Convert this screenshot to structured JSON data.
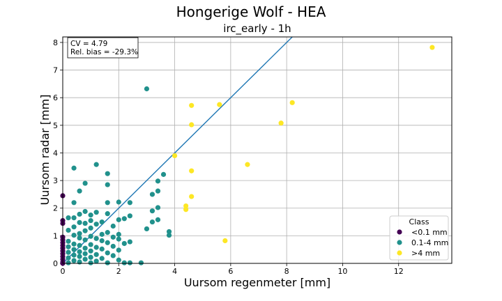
{
  "chart_data": {
    "type": "scatter",
    "suptitle": "Hongerige Wolf - HEA",
    "title": "irc_early - 1h",
    "xlabel": "Uursom regenmeter [mm]",
    "ylabel": "Uursom radar [mm]",
    "xlim": [
      0,
      13.9
    ],
    "ylim": [
      0,
      8.2
    ],
    "xticks": [
      0,
      2,
      4,
      6,
      8,
      10,
      12
    ],
    "yticks": [
      0,
      1,
      2,
      3,
      4,
      5,
      6,
      7,
      8
    ],
    "grid": true,
    "legend": {
      "title": "Class",
      "placement": "lower-right"
    },
    "annotation": {
      "line1": "CV = 4.79",
      "line2": "Rel. bias = -29.3%"
    },
    "reference_line": {
      "x": [
        0,
        8.2
      ],
      "y": [
        0,
        8.2
      ],
      "color": "#1f77b4"
    },
    "series": [
      {
        "name": "<0.1 mm",
        "color": "#440154",
        "points": [
          [
            0,
            2.45
          ],
          [
            0,
            1.55
          ],
          [
            0,
            1.45
          ],
          [
            0,
            0.95
          ],
          [
            0,
            0.85
          ],
          [
            0,
            0.75
          ],
          [
            0,
            0.65
          ],
          [
            0,
            0.55
          ],
          [
            0,
            0.45
          ],
          [
            0,
            0.35
          ],
          [
            0,
            0.25
          ],
          [
            0,
            0.15
          ],
          [
            0,
            0.05
          ],
          [
            0,
            0
          ]
        ]
      },
      {
        "name": "0.1-4 mm",
        "color": "#21918c",
        "points": [
          [
            3.0,
            6.32
          ],
          [
            1.2,
            3.58
          ],
          [
            0.4,
            3.45
          ],
          [
            1.6,
            3.25
          ],
          [
            3.6,
            3.22
          ],
          [
            3.4,
            2.98
          ],
          [
            0.8,
            2.9
          ],
          [
            1.6,
            2.85
          ],
          [
            0.6,
            2.62
          ],
          [
            3.4,
            2.62
          ],
          [
            3.2,
            2.5
          ],
          [
            2.0,
            2.22
          ],
          [
            0.4,
            2.2
          ],
          [
            1.6,
            2.2
          ],
          [
            2.4,
            2.2
          ],
          [
            3.4,
            2.02
          ],
          [
            3.2,
            1.9
          ],
          [
            0.8,
            1.88
          ],
          [
            1.2,
            1.85
          ],
          [
            1.6,
            1.8
          ],
          [
            0.6,
            1.78
          ],
          [
            1.0,
            1.75
          ],
          [
            2.4,
            1.72
          ],
          [
            0.2,
            1.65
          ],
          [
            0.4,
            1.65
          ],
          [
            2.2,
            1.62
          ],
          [
            2.0,
            1.58
          ],
          [
            3.4,
            1.58
          ],
          [
            1.0,
            1.55
          ],
          [
            1.4,
            1.5
          ],
          [
            3.2,
            1.5
          ],
          [
            0.6,
            1.48
          ],
          [
            0.8,
            1.45
          ],
          [
            1.2,
            1.42
          ],
          [
            1.8,
            1.35
          ],
          [
            0.4,
            1.32
          ],
          [
            1.0,
            1.28
          ],
          [
            3.0,
            1.25
          ],
          [
            0.2,
            1.2
          ],
          [
            0.8,
            1.18
          ],
          [
            3.8,
            1.15
          ],
          [
            1.6,
            1.12
          ],
          [
            0.6,
            1.08
          ],
          [
            1.4,
            1.05
          ],
          [
            2.0,
            1.05
          ],
          [
            3.8,
            1.02
          ],
          [
            0.4,
            1.02
          ],
          [
            1.0,
            0.98
          ],
          [
            1.8,
            0.95
          ],
          [
            0.6,
            0.92
          ],
          [
            1.2,
            0.9
          ],
          [
            2.0,
            0.88
          ],
          [
            0.8,
            0.85
          ],
          [
            1.4,
            0.82
          ],
          [
            0.2,
            0.8
          ],
          [
            2.4,
            0.78
          ],
          [
            1.6,
            0.75
          ],
          [
            2.2,
            0.72
          ],
          [
            0.4,
            0.7
          ],
          [
            1.0,
            0.68
          ],
          [
            0.6,
            0.65
          ],
          [
            1.8,
            0.62
          ],
          [
            0.2,
            0.6
          ],
          [
            1.2,
            0.58
          ],
          [
            0.8,
            0.55
          ],
          [
            1.4,
            0.52
          ],
          [
            0.4,
            0.5
          ],
          [
            2.0,
            0.48
          ],
          [
            1.0,
            0.45
          ],
          [
            0.6,
            0.42
          ],
          [
            0.2,
            0.4
          ],
          [
            1.6,
            0.38
          ],
          [
            0.8,
            0.35
          ],
          [
            1.2,
            0.32
          ],
          [
            0.4,
            0.3
          ],
          [
            1.8,
            0.28
          ],
          [
            0.6,
            0.25
          ],
          [
            1.0,
            0.22
          ],
          [
            0.2,
            0.2
          ],
          [
            1.4,
            0.18
          ],
          [
            0.8,
            0.15
          ],
          [
            2.0,
            0.12
          ],
          [
            0.4,
            0.1
          ],
          [
            1.2,
            0.08
          ],
          [
            0.6,
            0.05
          ],
          [
            0.2,
            0.02
          ],
          [
            1.0,
            0.02
          ],
          [
            1.6,
            0.02
          ],
          [
            2.2,
            0.02
          ],
          [
            2.4,
            0.02
          ],
          [
            2.8,
            0.02
          ]
        ]
      },
      {
        "name": ">4 mm",
        "color": "#fde725",
        "points": [
          [
            13.2,
            7.82
          ],
          [
            8.2,
            5.82
          ],
          [
            4.6,
            5.72
          ],
          [
            5.6,
            5.75
          ],
          [
            7.8,
            5.08
          ],
          [
            4.6,
            5.02
          ],
          [
            4.0,
            3.9
          ],
          [
            6.6,
            3.58
          ],
          [
            4.6,
            3.35
          ],
          [
            4.6,
            2.42
          ],
          [
            4.4,
            2.08
          ],
          [
            4.4,
            1.95
          ],
          [
            5.8,
            0.82
          ]
        ]
      }
    ]
  }
}
